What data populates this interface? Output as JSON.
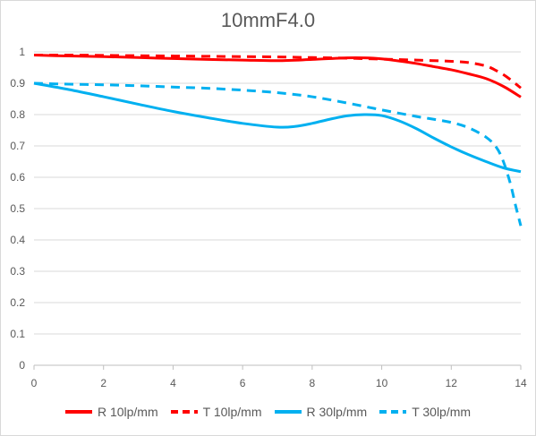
{
  "chart_data": {
    "type": "line",
    "title": "10mmF4.0",
    "xlabel": "",
    "ylabel": "",
    "xlim": [
      0,
      14
    ],
    "ylim": [
      0,
      1
    ],
    "xticks": [
      "0",
      "2",
      "4",
      "6",
      "8",
      "10",
      "12",
      "14"
    ],
    "yticks": [
      "0",
      "0.1",
      "0.2",
      "0.3",
      "0.4",
      "0.5",
      "0.6",
      "0.7",
      "0.8",
      "0.9",
      "1"
    ],
    "grid": "horizontal",
    "legend_position": "bottom",
    "series": [
      {
        "name": "R 10lp/mm",
        "color": "#ff0000",
        "dash": "solid",
        "x": [
          0,
          1,
          2,
          3,
          4,
          5,
          6,
          7,
          8,
          9,
          9.5,
          10,
          10.5,
          11,
          11.5,
          12,
          12.5,
          13,
          13.5,
          14
        ],
        "y": [
          0.99,
          0.987,
          0.985,
          0.982,
          0.979,
          0.976,
          0.974,
          0.972,
          0.976,
          0.981,
          0.981,
          0.978,
          0.971,
          0.963,
          0.953,
          0.943,
          0.93,
          0.915,
          0.89,
          0.856
        ]
      },
      {
        "name": "T 10lp/mm",
        "color": "#ff0000",
        "dash": "dashed",
        "x": [
          0,
          1,
          2,
          3,
          4,
          5,
          6,
          7,
          8,
          9,
          10,
          11,
          12,
          12.5,
          13,
          13.3,
          13.6,
          14
        ],
        "y": [
          0.99,
          0.99,
          0.989,
          0.988,
          0.987,
          0.986,
          0.985,
          0.984,
          0.982,
          0.98,
          0.977,
          0.974,
          0.97,
          0.966,
          0.955,
          0.94,
          0.92,
          0.885
        ]
      },
      {
        "name": "R 30lp/mm",
        "color": "#00b0f0",
        "dash": "solid",
        "x": [
          0,
          1,
          2,
          3,
          4,
          5,
          6,
          7,
          7.5,
          8,
          8.5,
          9,
          9.5,
          10,
          10.5,
          11,
          11.5,
          12,
          12.5,
          13,
          13.5,
          14
        ],
        "y": [
          0.9,
          0.88,
          0.857,
          0.833,
          0.81,
          0.79,
          0.772,
          0.76,
          0.762,
          0.772,
          0.785,
          0.796,
          0.8,
          0.797,
          0.78,
          0.755,
          0.725,
          0.697,
          0.672,
          0.65,
          0.63,
          0.618
        ]
      },
      {
        "name": "T 30lp/mm",
        "color": "#00b0f0",
        "dash": "dashed",
        "x": [
          0,
          1,
          2,
          3,
          4,
          5,
          6,
          7,
          8,
          9,
          10,
          11,
          11.5,
          12,
          12.5,
          13,
          13.3,
          13.5,
          13.7,
          13.85,
          14
        ],
        "y": [
          0.9,
          0.897,
          0.895,
          0.892,
          0.888,
          0.884,
          0.878,
          0.87,
          0.857,
          0.837,
          0.815,
          0.794,
          0.785,
          0.775,
          0.758,
          0.728,
          0.695,
          0.65,
          0.58,
          0.51,
          0.445
        ]
      }
    ]
  }
}
